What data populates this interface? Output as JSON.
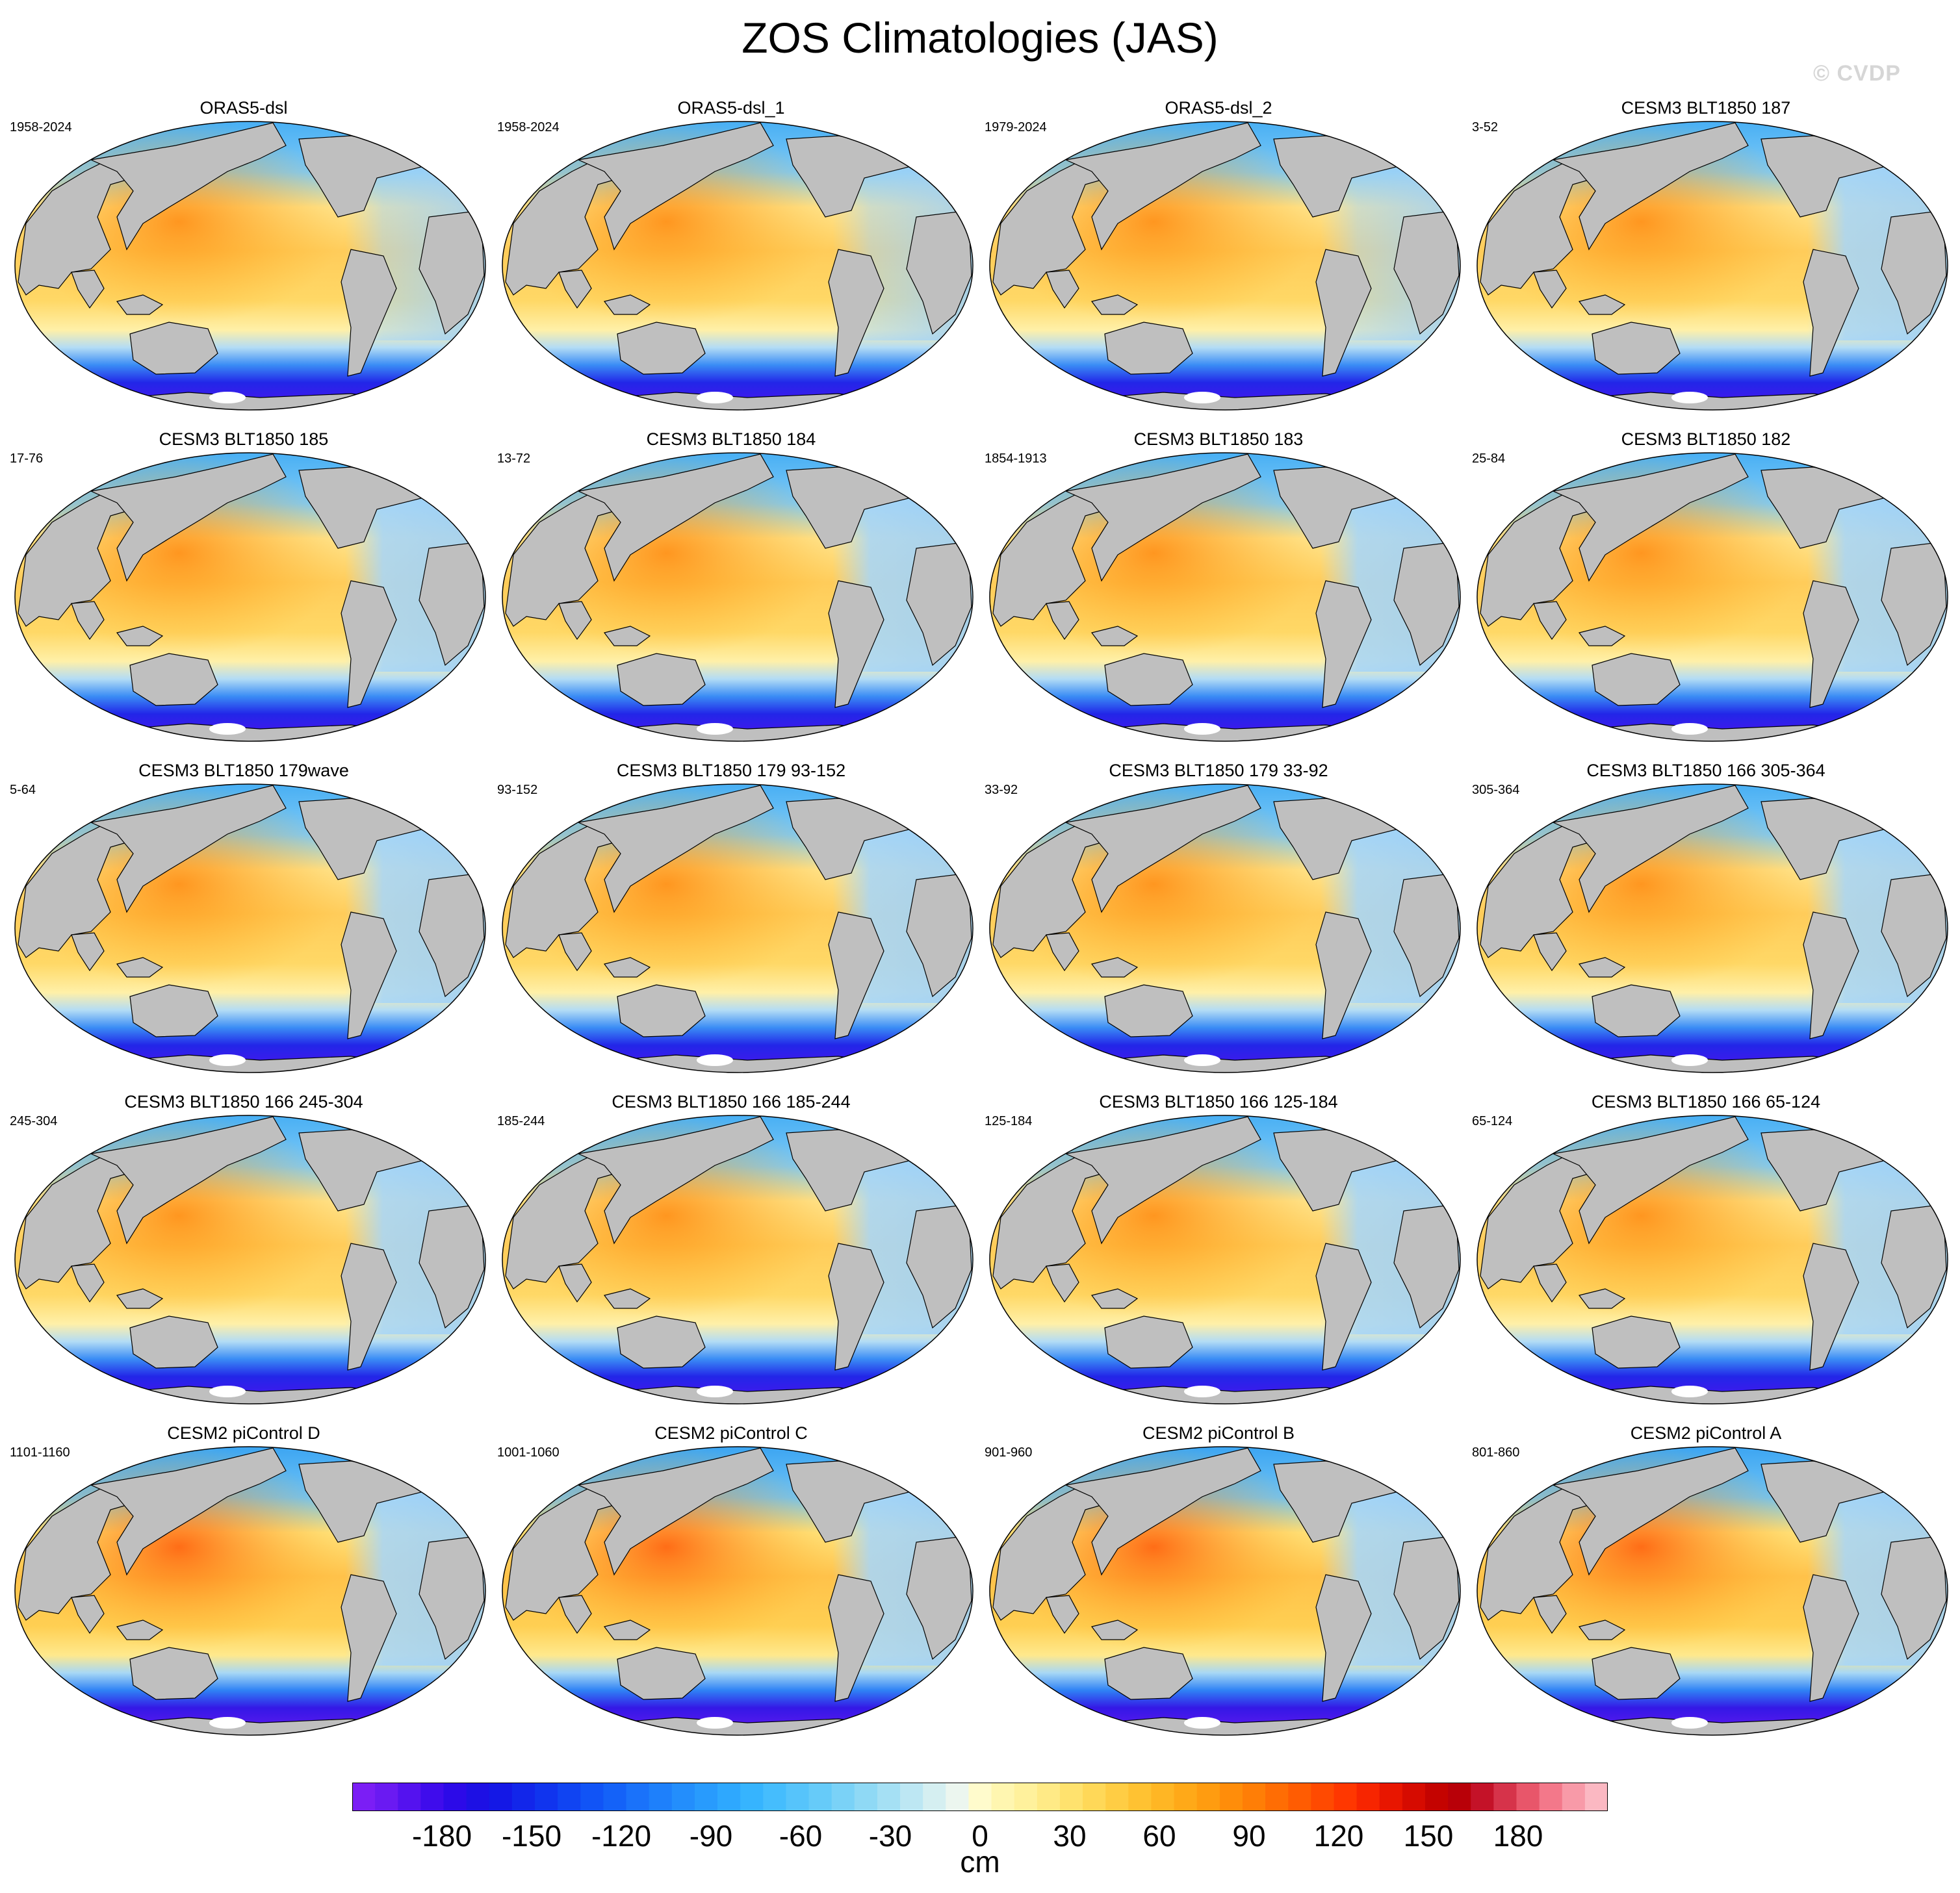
{
  "title": "ZOS Climatologies (JAS)",
  "watermark": "© CVDP",
  "panels": [
    {
      "title": "ORAS5-dsl",
      "years": "1958-2024",
      "variant": "obs"
    },
    {
      "title": "ORAS5-dsl_1",
      "years": "1958-2024",
      "variant": "obs"
    },
    {
      "title": "ORAS5-dsl_2",
      "years": "1979-2024",
      "variant": "obs"
    },
    {
      "title": "CESM3 BLT1850 187",
      "years": "3-52",
      "variant": "cesm3"
    },
    {
      "title": "CESM3 BLT1850 185",
      "years": "17-76",
      "variant": "cesm3"
    },
    {
      "title": "CESM3 BLT1850 184",
      "years": "13-72",
      "variant": "cesm3"
    },
    {
      "title": "CESM3 BLT1850 183",
      "years": "1854-1913",
      "variant": "cesm3"
    },
    {
      "title": "CESM3 BLT1850 182",
      "years": "25-84",
      "variant": "cesm3"
    },
    {
      "title": "CESM3 BLT1850 179wave",
      "years": "5-64",
      "variant": "cesm3"
    },
    {
      "title": "CESM3 BLT1850 179 93-152",
      "years": "93-152",
      "variant": "cesm3"
    },
    {
      "title": "CESM3 BLT1850 179 33-92",
      "years": "33-92",
      "variant": "cesm3"
    },
    {
      "title": "CESM3 BLT1850 166 305-364",
      "years": "305-364",
      "variant": "cesm3"
    },
    {
      "title": "CESM3 BLT1850 166 245-304",
      "years": "245-304",
      "variant": "cesm3"
    },
    {
      "title": "CESM3 BLT1850 166 185-244",
      "years": "185-244",
      "variant": "cesm3"
    },
    {
      "title": "CESM3 BLT1850 166 125-184",
      "years": "125-184",
      "variant": "cesm3"
    },
    {
      "title": "CESM3 BLT1850 166 65-124",
      "years": "65-124",
      "variant": "cesm3"
    },
    {
      "title": "CESM2 piControl D",
      "years": "1101-1160",
      "variant": "cesm2"
    },
    {
      "title": "CESM2 piControl C",
      "years": "1001-1060",
      "variant": "cesm2"
    },
    {
      "title": "CESM2 piControl B",
      "years": "901-960",
      "variant": "cesm2"
    },
    {
      "title": "CESM2 piControl A",
      "years": "801-860",
      "variant": "cesm2"
    }
  ],
  "colorbar": {
    "units": "cm",
    "tick_values": [
      -180,
      -150,
      -120,
      -90,
      -60,
      -30,
      0,
      30,
      60,
      90,
      120,
      150,
      180
    ],
    "tick_labels": [
      "-180",
      "-150",
      "-120",
      "-90",
      "-60",
      "-30",
      "0",
      "30",
      "60",
      "90",
      "120",
      "150",
      "180"
    ],
    "range": [
      -210,
      210
    ],
    "colors": [
      "#7b1ef5",
      "#6a1af2",
      "#5412ef",
      "#3f0cec",
      "#2c0ae8",
      "#1d10e4",
      "#1418e6",
      "#1226ea",
      "#1034ee",
      "#1044f2",
      "#1154f6",
      "#1462f8",
      "#1a72fa",
      "#1e80fb",
      "#238efc",
      "#289bfd",
      "#2ea8fe",
      "#36b4fe",
      "#45bdfd",
      "#56c4fb",
      "#66cbf9",
      "#7ad2f7",
      "#8fd9f5",
      "#a5e0f4",
      "#bde7f3",
      "#d5eff1",
      "#ecf6ef",
      "#fffbcc",
      "#fff6b0",
      "#fff19c",
      "#ffea86",
      "#ffe26e",
      "#ffd858",
      "#ffcd44",
      "#ffc232",
      "#ffb624",
      "#ffa918",
      "#ff9c10",
      "#ff8d0a",
      "#ff7e06",
      "#ff6d04",
      "#ff5c02",
      "#ff4a01",
      "#ff3700",
      "#f72500",
      "#e81600",
      "#d60b00",
      "#c40300",
      "#b80008",
      "#c41228",
      "#d6334a",
      "#e8566a",
      "#f3788a",
      "#f89aa8",
      "#fbb8c2"
    ]
  },
  "colors": {
    "land": "#bfbfbf",
    "ice_shelf": "#ffffff",
    "coast": "#000000"
  }
}
